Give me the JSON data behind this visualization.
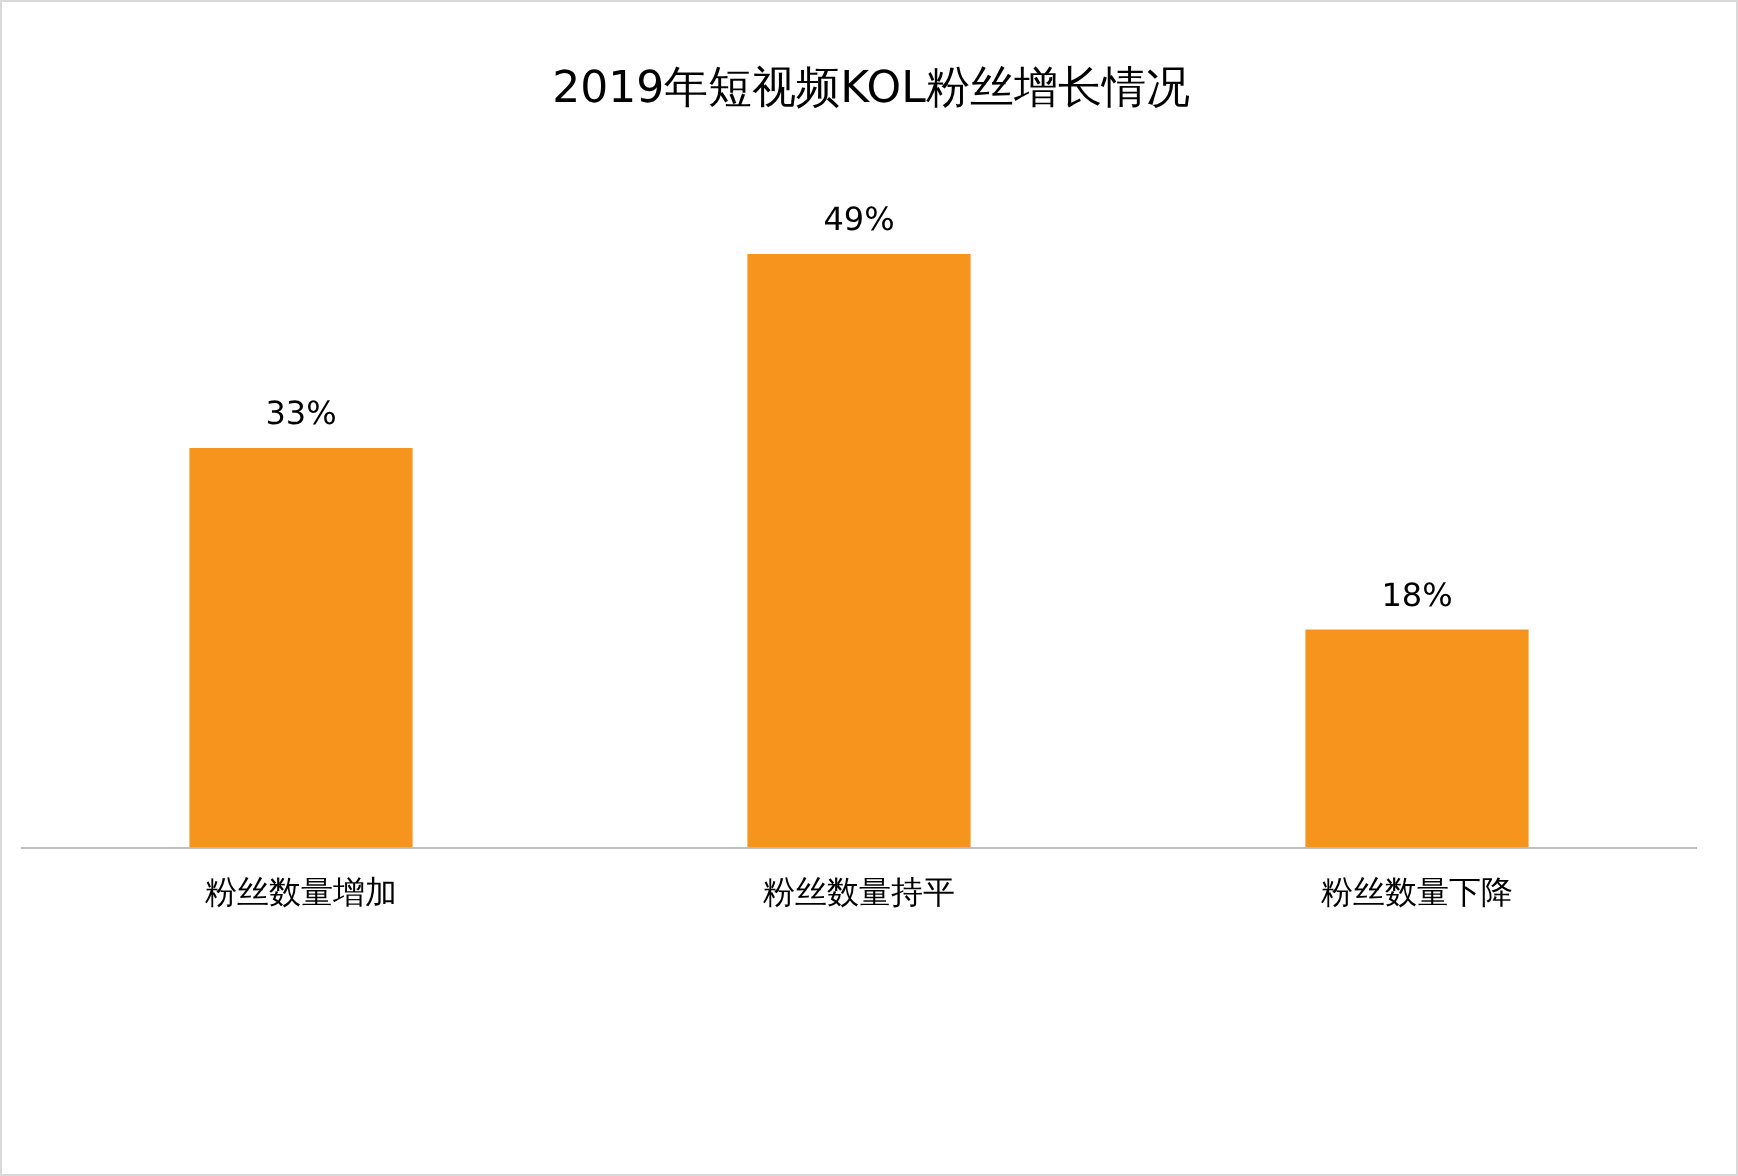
{
  "chart_data": {
    "type": "bar",
    "title": "2019年短视频KOL粉丝增长情况",
    "categories": [
      "粉丝数量增加",
      "粉丝数量持平",
      "粉丝数量下降"
    ],
    "values": [
      33,
      49,
      18
    ],
    "value_labels": [
      "33%",
      "49%",
      "18%"
    ],
    "color": "#f7941d",
    "grid": false,
    "legend": false
  }
}
